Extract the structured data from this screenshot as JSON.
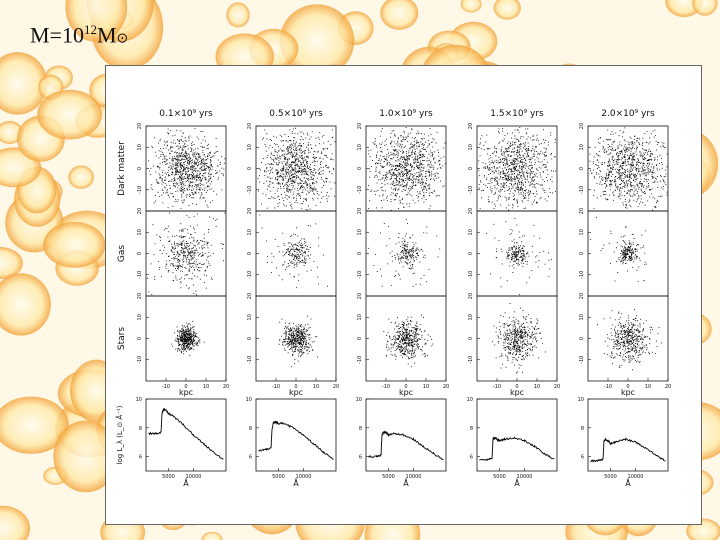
{
  "slide": {
    "title_prefix": "M=10",
    "title_exp": "12",
    "title_unit": "M",
    "title_sun": "⊙"
  },
  "figure": {
    "columns": [
      "0.1×10⁹ yrs",
      "0.5×10⁹ yrs",
      "1.0×10⁹ yrs",
      "1.5×10⁹ yrs",
      "2.0×10⁹ yrs"
    ],
    "row_labels": [
      "Dark matter",
      "Gas",
      "Stars"
    ],
    "spectrum_ylabel": "log L_λ (L_⊙ Å⁻¹)",
    "xlabel_kpc": "kpc",
    "xlabel_angstrom": "Å"
  },
  "chart_data": [
    {
      "type": "scatter",
      "panel": "particle maps",
      "rows": [
        "Dark matter",
        "Gas",
        "Stars"
      ],
      "columns": [
        "0.1×10⁹ yrs",
        "0.5×10⁹ yrs",
        "1.0×10⁹ yrs",
        "1.5×10⁹ yrs",
        "2.0×10⁹ yrs"
      ],
      "xlabel": "kpc",
      "xlim": [
        -20,
        20
      ],
      "ylim": [
        -20,
        20
      ],
      "xticks": [
        -10,
        0,
        10,
        20
      ],
      "yticks": [
        -10,
        0,
        10,
        20
      ],
      "central_spread_kpc": {
        "Dark matter": [
          8,
          9,
          9,
          9,
          9
        ],
        "Gas": [
          6,
          3,
          3,
          2.5,
          2
        ],
        "Stars": [
          2.5,
          3.5,
          4.5,
          5,
          5
        ]
      }
    },
    {
      "type": "line",
      "panel": "spectra",
      "xlabel": "Å",
      "ylabel": "log L_λ (L_⊙ Å⁻¹)",
      "xticks": [
        5000,
        10000
      ],
      "yticks": [
        6,
        8,
        10
      ],
      "ylim": [
        5,
        10
      ],
      "columns": [
        "0.1×10⁹ yrs",
        "0.5×10⁹ yrs",
        "1.0×10⁹ yrs",
        "1.5×10⁹ yrs",
        "2.0×10⁹ yrs"
      ],
      "series": [
        {
          "x": [
            1000,
            2500,
            3500,
            3700,
            4000,
            4500,
            5000,
            6000,
            8000,
            10000,
            12000,
            14000,
            16000
          ],
          "y": [
            7.6,
            7.6,
            7.7,
            9.0,
            9.3,
            9.2,
            9.0,
            8.8,
            8.2,
            7.5,
            6.9,
            6.3,
            5.8
          ]
        },
        {
          "x": [
            1000,
            2500,
            3500,
            3700,
            4000,
            4500,
            5000,
            6000,
            8000,
            10000,
            12000,
            14000,
            16000
          ],
          "y": [
            6.4,
            6.5,
            6.6,
            7.9,
            8.4,
            8.4,
            8.3,
            8.3,
            8.0,
            7.5,
            6.9,
            6.3,
            5.8
          ]
        },
        {
          "x": [
            1000,
            2500,
            3500,
            3700,
            4000,
            4500,
            5000,
            6000,
            8000,
            10000,
            12000,
            14000,
            16000
          ],
          "y": [
            6.0,
            6.0,
            6.1,
            7.5,
            7.7,
            7.7,
            7.5,
            7.6,
            7.5,
            7.2,
            6.7,
            6.2,
            5.8
          ]
        },
        {
          "x": [
            1000,
            2500,
            3500,
            3700,
            4000,
            4500,
            5000,
            6000,
            8000,
            10000,
            12000,
            14000,
            16000
          ],
          "y": [
            5.8,
            5.8,
            5.9,
            7.2,
            7.3,
            7.2,
            7.1,
            7.2,
            7.3,
            7.1,
            6.7,
            6.2,
            5.8
          ]
        },
        {
          "x": [
            1000,
            2500,
            3500,
            3700,
            4000,
            4500,
            5000,
            6000,
            8000,
            10000,
            12000,
            14000,
            16000
          ],
          "y": [
            5.7,
            5.7,
            5.8,
            7.1,
            7.2,
            7.1,
            6.9,
            7.0,
            7.2,
            7.0,
            6.6,
            6.1,
            5.7
          ]
        }
      ]
    }
  ]
}
